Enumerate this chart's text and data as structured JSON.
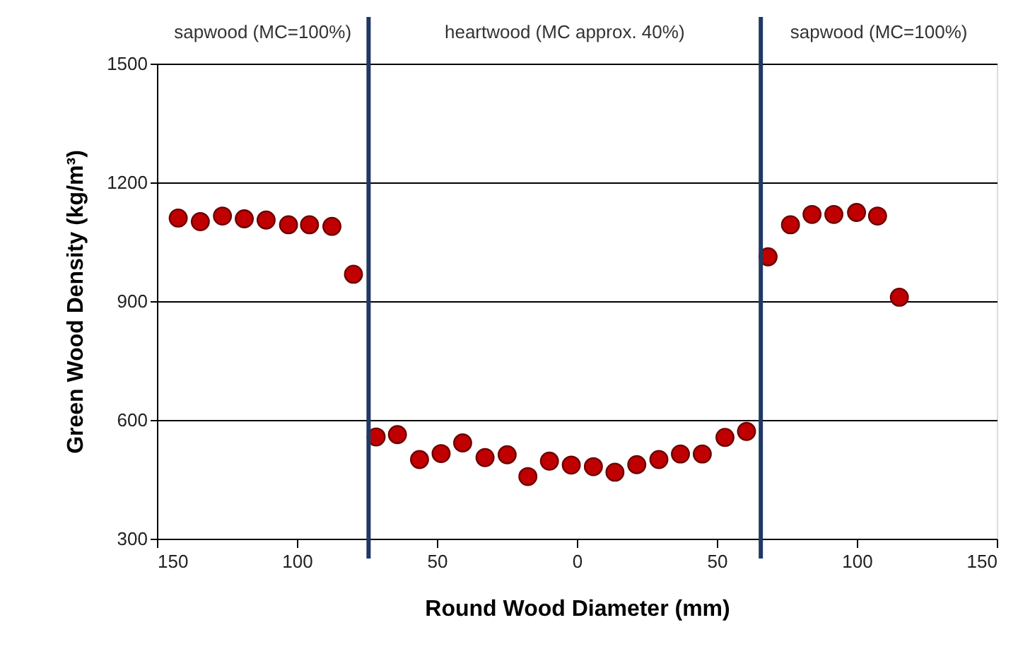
{
  "chart_data": {
    "type": "scatter",
    "xlabel": "Round Wood Diameter (mm)",
    "ylabel": "Green Wood Density (kg/m³)",
    "x": [
      -142.4,
      -134.5,
      -126.6,
      -118.8,
      -111,
      -103,
      -95.5,
      -87.5,
      -79.8,
      -71.7,
      -64.1,
      -56.2,
      -48.5,
      -40.8,
      -32.8,
      -24.9,
      -17.5,
      -9.8,
      -2,
      5.9,
      13.6,
      21.4,
      29.3,
      37,
      44.8,
      52.9,
      60.6,
      68.3,
      76.3,
      84,
      91.8,
      99.9,
      107.4,
      115.2
    ],
    "series": [
      {
        "color": "#c00000",
        "values": [
          1110,
          1101,
          1115,
          1108,
          1105,
          1093,
          1093,
          1089,
          968,
          557,
          563,
          500,
          515,
          542,
          505,
          512,
          457,
          496,
          486,
          482,
          468,
          487,
          500,
          514,
          514,
          556,
          571,
          1012,
          1093,
          1119,
          1119,
          1124,
          1115,
          910
        ]
      }
    ],
    "marker": "circle",
    "xlim": [
      -150,
      150
    ],
    "xticks": [
      {
        "value": -150,
        "label": "150"
      },
      {
        "value": -100,
        "label": "100"
      },
      {
        "value": -50,
        "label": "50"
      },
      0,
      50,
      100,
      150
    ],
    "ylim": [
      300,
      1500
    ],
    "yticks": [
      300,
      600,
      900,
      1200,
      1500
    ],
    "grid": "y",
    "ref_lines": [
      {
        "axis": "x",
        "value": -74.4,
        "color": "#1f3864"
      },
      {
        "axis": "x",
        "value": 65.7,
        "color": "#1f3864"
      }
    ],
    "annotations": [
      "sapwood (MC=100%)",
      "heartwood (MC approx. 40%)",
      "sapwood (MC=100%)"
    ]
  }
}
